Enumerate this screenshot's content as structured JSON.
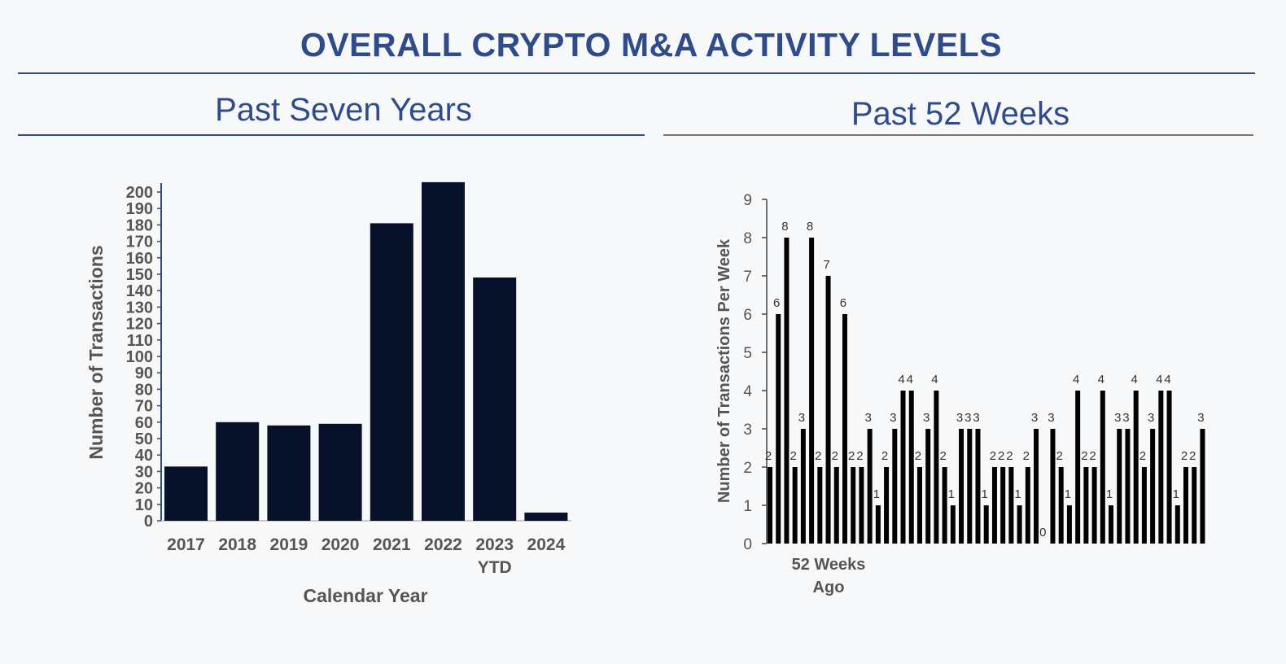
{
  "header": {
    "title": "OVERALL CRYPTO M&A ACTIVITY LEVELS"
  },
  "chart_data": [
    {
      "type": "bar",
      "title": "Past Seven Years",
      "categories": [
        "2017",
        "2018",
        "2019",
        "2020",
        "2021",
        "2022",
        "2023\nYTD",
        "2024"
      ],
      "values": [
        33,
        60,
        58,
        59,
        181,
        206,
        148,
        5
      ],
      "xlabel": "Calendar Year",
      "ylabel": "Number of Transactions",
      "ylim": [
        0,
        200
      ],
      "yticks": [
        0,
        10,
        20,
        30,
        40,
        50,
        60,
        70,
        80,
        90,
        100,
        110,
        120,
        130,
        140,
        150,
        160,
        170,
        180,
        190,
        200
      ],
      "bar_color": "#08112a",
      "grid": false
    },
    {
      "type": "bar",
      "title": "Past 52 Weeks",
      "values": [
        2,
        6,
        8,
        2,
        3,
        8,
        2,
        7,
        2,
        6,
        2,
        2,
        3,
        1,
        2,
        3,
        4,
        4,
        2,
        3,
        4,
        2,
        1,
        3,
        3,
        3,
        1,
        2,
        2,
        2,
        1,
        2,
        3,
        0,
        3,
        2,
        1,
        4,
        2,
        2,
        4,
        1,
        3,
        3,
        4,
        2,
        3,
        4,
        4,
        1,
        2,
        2,
        3
      ],
      "first_category_label": "52 Weeks\nAgo",
      "ylabel": "Number of Transactions Per Week",
      "ylim": [
        0,
        9
      ],
      "yticks": [
        0,
        1,
        2,
        3,
        4,
        5,
        6,
        7,
        8,
        9
      ],
      "bar_color": "#000000",
      "data_labels": true,
      "grid": false
    }
  ]
}
